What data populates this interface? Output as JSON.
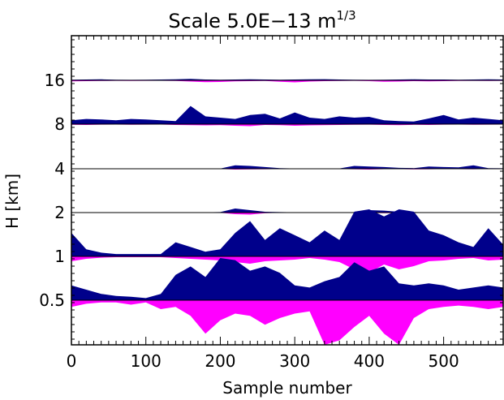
{
  "chart_data": {
    "type": "area",
    "title": "Scale  5.0E−13  m",
    "title_superscript": "1/3",
    "xlabel": "Sample number",
    "ylabel": "H  [km]",
    "xlim": [
      0,
      580
    ],
    "x_ticks": [
      0,
      100,
      200,
      300,
      400,
      500
    ],
    "x_tick_labels": [
      "0",
      "100",
      "200",
      "300",
      "400",
      "500"
    ],
    "y_tick_labels": [
      "16",
      "8",
      "4",
      "2",
      "1",
      "0.5"
    ],
    "grid": false,
    "colors": {
      "positive": "#00008b",
      "negative": "#ff00ff",
      "baseline": "#000000"
    },
    "samples_per_series": 30,
    "series": [
      {
        "name": "16",
        "positive": [
          0.08,
          0.1,
          0.12,
          0.08,
          0.06,
          0.08,
          0.1,
          0.12,
          0.18,
          0.1,
          0.08,
          0.1,
          0.12,
          0.1,
          0.08,
          0.1,
          0.12,
          0.14,
          0.1,
          0.08,
          0.06,
          0.08,
          0.1,
          0.12,
          0.1,
          0.1,
          0.08,
          0.1,
          0.12,
          0.1
        ],
        "negative": [
          0.12,
          0.1,
          0.08,
          0.06,
          0.08,
          0.06,
          0.05,
          0.08,
          0.15,
          0.22,
          0.2,
          0.12,
          0.1,
          0.08,
          0.18,
          0.25,
          0.15,
          0.1,
          0.08,
          0.06,
          0.1,
          0.18,
          0.15,
          0.1,
          0.12,
          0.1,
          0.08,
          0.06,
          0.08,
          0.06
        ]
      },
      {
        "name": "8",
        "positive": [
          0.15,
          0.2,
          0.18,
          0.15,
          0.2,
          0.18,
          0.15,
          0.12,
          0.7,
          0.3,
          0.25,
          0.2,
          0.35,
          0.4,
          0.22,
          0.45,
          0.25,
          0.2,
          0.3,
          0.25,
          0.28,
          0.15,
          0.12,
          0.1,
          0.22,
          0.35,
          0.18,
          0.25,
          0.2,
          0.15
        ],
        "negative": [
          0.08,
          0.1,
          0.06,
          0.05,
          0.08,
          0.06,
          0.05,
          0.1,
          0.12,
          0.15,
          0.12,
          0.2,
          0.25,
          0.1,
          0.12,
          0.2,
          0.15,
          0.12,
          0.1,
          0.08,
          0.06,
          0.1,
          0.12,
          0.08,
          0.1,
          0.06,
          0.05,
          0.08,
          0.06,
          0.05
        ]
      },
      {
        "name": "4",
        "positive": [
          0.02,
          0.02,
          0.02,
          0.02,
          0.02,
          0.02,
          0.03,
          0.03,
          0.02,
          0.03,
          0.02,
          0.3,
          0.25,
          0.15,
          0.05,
          0.03,
          0.02,
          0.03,
          0.03,
          0.25,
          0.2,
          0.15,
          0.08,
          0.06,
          0.2,
          0.15,
          0.12,
          0.3,
          0.06,
          0.04
        ],
        "negative": [
          0.03,
          0.02,
          0.02,
          0.03,
          0.02,
          0.03,
          0.04,
          0.02,
          0.03,
          0.02,
          0.02,
          0.12,
          0.1,
          0.08,
          0.05,
          0.03,
          0.04,
          0.03,
          0.05,
          0.08,
          0.12,
          0.06,
          0.05,
          0.1,
          0.08,
          0.05,
          0.06,
          0.08,
          0.04,
          0.03
        ]
      },
      {
        "name": "2",
        "positive": [
          0.02,
          0.02,
          0.02,
          0.02,
          0.02,
          0.02,
          0.02,
          0.02,
          0.02,
          0.02,
          0.03,
          0.25,
          0.15,
          0.05,
          0.03,
          0.02,
          0.02,
          0.02,
          0.02,
          0.02,
          0.15,
          0.12,
          0.05,
          0.03,
          0.02,
          0.02,
          0.02,
          0.02,
          0.02,
          0.02
        ],
        "negative": [
          0.03,
          0.02,
          0.02,
          0.02,
          0.03,
          0.02,
          0.02,
          0.02,
          0.03,
          0.02,
          0.02,
          0.2,
          0.25,
          0.08,
          0.03,
          0.02,
          0.02,
          0.02,
          0.02,
          0.02,
          0.04,
          0.08,
          0.05,
          0.02,
          0.02,
          0.03,
          0.02,
          0.02,
          0.02,
          0.02
        ]
      },
      {
        "name": "1",
        "positive": [
          0.5,
          0.15,
          0.08,
          0.05,
          0.05,
          0.05,
          0.05,
          0.3,
          0.2,
          0.1,
          0.15,
          0.5,
          0.75,
          0.35,
          0.6,
          0.45,
          0.3,
          0.55,
          0.35,
          0.95,
          1.0,
          0.85,
          1.0,
          0.95,
          0.55,
          0.45,
          0.3,
          0.2,
          0.6,
          0.25
        ],
        "negative": [
          0.3,
          0.15,
          0.08,
          0.05,
          0.05,
          0.05,
          0.05,
          0.1,
          0.15,
          0.2,
          0.25,
          0.35,
          0.45,
          0.3,
          0.25,
          0.2,
          0.1,
          0.2,
          0.35,
          0.8,
          1.0,
          0.5,
          0.8,
          0.6,
          0.3,
          0.25,
          0.15,
          0.1,
          0.25,
          0.2
        ]
      },
      {
        "name": "0.5",
        "positive": [
          0.35,
          0.25,
          0.15,
          0.1,
          0.08,
          0.05,
          0.15,
          0.6,
          0.8,
          0.55,
          1.0,
          0.95,
          0.7,
          0.8,
          0.65,
          0.35,
          0.3,
          0.45,
          0.55,
          0.9,
          0.7,
          0.8,
          0.4,
          0.35,
          0.4,
          0.35,
          0.25,
          0.3,
          0.35,
          0.3
        ],
        "negative": [
          0.15,
          0.08,
          0.05,
          0.05,
          0.1,
          0.05,
          0.2,
          0.15,
          0.35,
          0.75,
          0.45,
          0.3,
          0.35,
          0.55,
          0.4,
          0.3,
          0.25,
          1.0,
          0.9,
          0.6,
          0.35,
          0.75,
          1.0,
          0.4,
          0.2,
          0.15,
          0.12,
          0.15,
          0.2,
          0.15
        ]
      }
    ]
  }
}
